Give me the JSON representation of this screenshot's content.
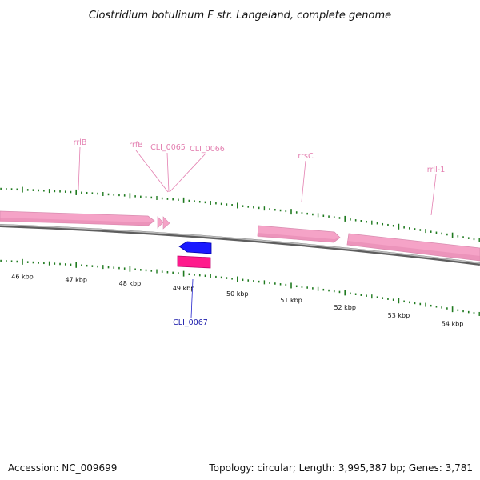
{
  "title": "Clostridium botulinum F str. Langeland, complete genome",
  "footer": {
    "accession": "Accession: NC_009699",
    "summary": "Topology: circular; Length: 3,995,387 bp; Genes: 3,781"
  },
  "colors": {
    "tick": "#1f7a1f",
    "rna_feature": "#f7a8c9",
    "rna_label": "#e37fb0",
    "cds_forward": "#1a1aff",
    "cds_reverse": "#ff1a8c",
    "cds_label": "#1a1aaa",
    "backbone": "#8c8c8c"
  },
  "scale": {
    "labels": [
      "46 kbp",
      "47 kbp",
      "48 kbp",
      "49 kbp",
      "50 kbp",
      "51 kbp",
      "52 kbp",
      "53 kbp",
      "54 kbp"
    ],
    "kbp": [
      46,
      47,
      48,
      49,
      50,
      51,
      52,
      53,
      54
    ]
  },
  "labels": {
    "rrlB": "rrlB",
    "rrfB": "rrfB",
    "cli0065": "CLI_0065",
    "cli0066": "CLI_0066",
    "rrsC": "rrsC",
    "rrlI1": "rrlI-1",
    "cli0067": "CLI_0067"
  }
}
